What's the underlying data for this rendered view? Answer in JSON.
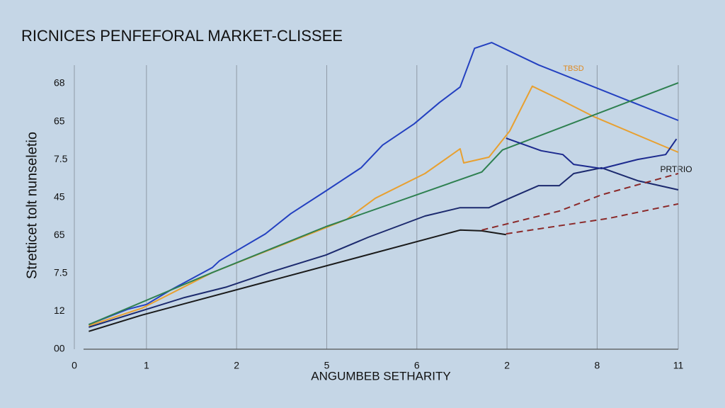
{
  "chart_data": {
    "type": "line",
    "title": "RICNICES PENFEFORAL MARKET-CLISSEE",
    "x_label": "ANGUMBEB SETHARITY",
    "y_label": "Stretticet tolt nunseletio",
    "annotations": [
      "TBSD",
      "PRTRIO"
    ],
    "xlim": [
      0.2,
      6.9
    ],
    "ylim": [
      0,
      8.2
    ],
    "grid": true,
    "xticks": [
      {
        "value": 0.2,
        "label": "0"
      },
      {
        "value": 1,
        "label": "1"
      },
      {
        "value": 2,
        "label": "2"
      },
      {
        "value": 3,
        "label": "5"
      },
      {
        "value": 4,
        "label": "6"
      },
      {
        "value": 5,
        "label": "2"
      },
      {
        "value": 6,
        "label": "8"
      },
      {
        "value": 6.9,
        "label": "11"
      }
    ],
    "yticks": [
      {
        "value": 0,
        "label": "00"
      },
      {
        "value": 1,
        "label": "12"
      },
      {
        "value": 2,
        "label": "7.5"
      },
      {
        "value": 3,
        "label": "65"
      },
      {
        "value": 4,
        "label": "45"
      },
      {
        "value": 5,
        "label": "7.5"
      },
      {
        "value": 6,
        "label": "65"
      },
      {
        "value": 7,
        "label": "68"
      }
    ],
    "series": [
      {
        "color": "#2340c0",
        "x": [
          0.36,
          0.79,
          1.0,
          1.26,
          1.73,
          1.81,
          2.32,
          2.6,
          2.99,
          3.38,
          3.62,
          3.97,
          4.25,
          4.48,
          4.64,
          4.83,
          5.35,
          6.9
        ],
        "values": [
          0.65,
          1.05,
          1.18,
          1.55,
          2.15,
          2.33,
          3.04,
          3.57,
          4.17,
          4.78,
          5.38,
          5.94,
          6.5,
          6.91,
          7.93,
          8.08,
          7.49,
          6.03
        ]
      },
      {
        "color": "#e8a030",
        "x": [
          0.36,
          0.95,
          1.73,
          2.52,
          3.22,
          3.54,
          4.09,
          4.48,
          4.52,
          4.8,
          5.03,
          5.28,
          5.58,
          5.97,
          6.9
        ],
        "values": [
          0.62,
          1.08,
          2.02,
          2.76,
          3.42,
          3.98,
          4.63,
          5.28,
          4.91,
          5.06,
          5.75,
          6.93,
          6.59,
          6.12,
          5.19
        ]
      },
      {
        "color": "#2e8050",
        "x": [
          0.36,
          1.73,
          2.99,
          4.72,
          4.95,
          6.9
        ],
        "values": [
          0.65,
          2.02,
          3.23,
          4.67,
          5.25,
          7.02
        ]
      },
      {
        "color": "#1c2a6e",
        "x": [
          0.36,
          1.42,
          1.89,
          2.36,
          2.99,
          3.46,
          4.09,
          4.48,
          4.8,
          5.03,
          5.35,
          5.58,
          5.74,
          6.05,
          6.45,
          6.9
        ],
        "values": [
          0.58,
          1.36,
          1.64,
          2.02,
          2.48,
          2.95,
          3.51,
          3.73,
          3.73,
          3.98,
          4.31,
          4.31,
          4.63,
          4.78,
          4.44,
          4.2
        ]
      },
      {
        "color": "#1c2a8e",
        "x": [
          4.99,
          5.38,
          5.62,
          5.74,
          6.05,
          6.45,
          6.76,
          6.88
        ],
        "values": [
          5.56,
          5.23,
          5.13,
          4.87,
          4.76,
          5.0,
          5.13,
          5.54
        ]
      },
      {
        "color": "#1a1a1a",
        "x": [
          0.36,
          0.95,
          4.48,
          4.72,
          4.99
        ],
        "values": [
          0.47,
          0.9,
          3.14,
          3.12,
          3.02
        ]
      },
      {
        "color": "#8b2a2a",
        "dashed": true,
        "x": [
          4.72,
          5.58,
          6.05,
          6.9
        ],
        "values": [
          3.14,
          3.64,
          4.07,
          4.63
        ]
      },
      {
        "color": "#8b2a2a",
        "dashed": true,
        "x": [
          4.99,
          6.13,
          6.9
        ],
        "values": [
          3.04,
          3.45,
          3.83
        ]
      }
    ]
  }
}
